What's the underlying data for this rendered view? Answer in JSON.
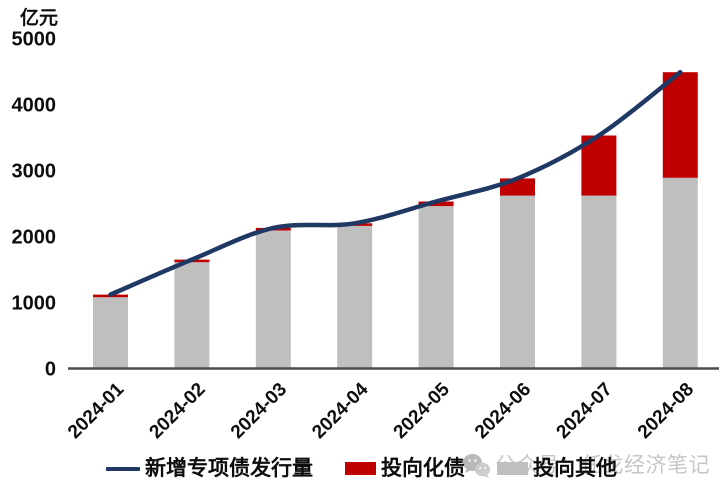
{
  "watermark": {
    "text": "公众号：任戈经济笔记"
  },
  "chart_data": {
    "type": "bar",
    "subtype": "stacked-bars-with-line",
    "unit_label": "亿元",
    "categories": [
      "2024-01",
      "2024-02",
      "2024-03",
      "2024-04",
      "2024-05",
      "2024-06",
      "2024-07",
      "2024-08"
    ],
    "series": [
      {
        "name": "新增专项债发行量",
        "type": "line",
        "color": "#1f3864",
        "values": [
          1120,
          1650,
          2130,
          2200,
          2530,
          2880,
          3530,
          4490
        ]
      },
      {
        "name": "投向化债",
        "type": "bar-stack-top",
        "color": "#c00000",
        "values": [
          40,
          40,
          40,
          40,
          70,
          260,
          910,
          1600
        ]
      },
      {
        "name": "投向其他",
        "type": "bar-stack-bottom",
        "color": "#bfbfbf",
        "values": [
          1080,
          1610,
          2090,
          2160,
          2460,
          2620,
          2620,
          2890
        ]
      }
    ],
    "title": "",
    "xlabel": "",
    "ylabel": "亿元",
    "ylim": [
      0,
      5000
    ],
    "yticks": [
      0,
      1000,
      2000,
      3000,
      4000,
      5000
    ],
    "grid": false,
    "legend_position": "bottom",
    "axis_color": "#4d4d4d",
    "text_color": "#0d0d0d"
  }
}
